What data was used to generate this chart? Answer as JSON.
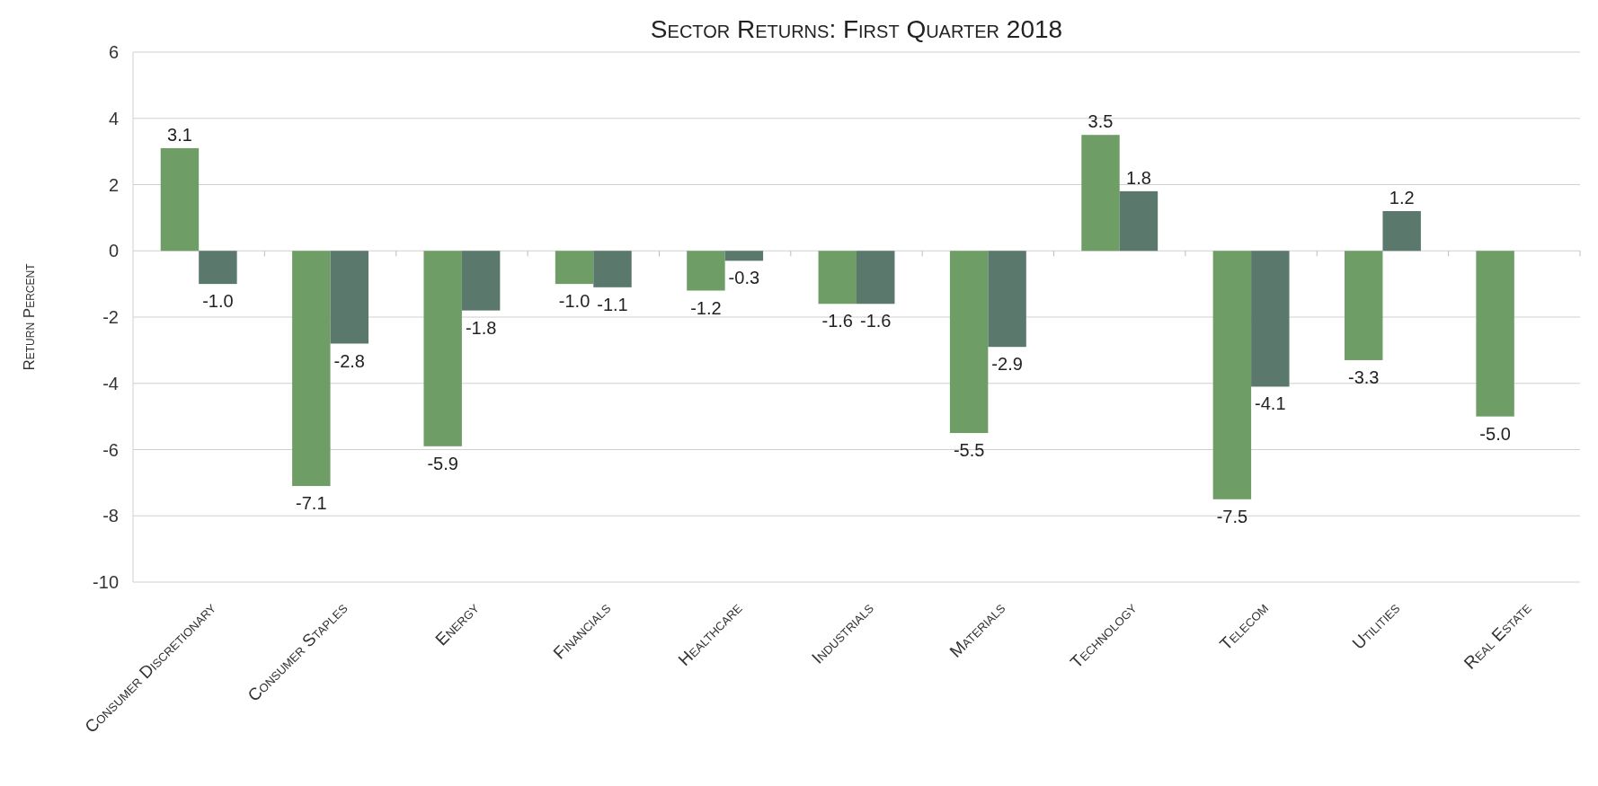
{
  "chart_data": {
    "type": "bar",
    "title": "Sector Returns: First Quarter 2018",
    "ylabel": "Return Percent",
    "categories": [
      "Consumer Discretionary",
      "Consumer Staples",
      "Energy",
      "Financials",
      "Healthcare",
      "Industrials",
      "Materials",
      "Technology",
      "Telecom",
      "Utilities",
      "Real Estate"
    ],
    "series": [
      {
        "color": "#6f9d66",
        "values": [
          3.1,
          -7.1,
          -5.9,
          -1.0,
          -1.2,
          -1.6,
          -5.5,
          3.5,
          -7.5,
          -3.3,
          -5.0
        ],
        "value_labels": [
          "3.1",
          "-7.1",
          "-5.9",
          "-1.0",
          "-1.2",
          "-1.6",
          "-5.5",
          "3.5",
          "-7.5",
          "-3.3",
          "-5.0"
        ]
      },
      {
        "color": "#5a786c",
        "values": [
          -1.0,
          -2.8,
          -1.8,
          -1.1,
          -0.3,
          -1.6,
          -2.9,
          1.8,
          -4.1,
          1.2,
          null
        ],
        "value_labels": [
          "-1.0",
          "-2.8",
          "-1.8",
          "-1.1",
          "-0.3",
          "-1.6",
          "-2.9",
          "1.8",
          "-4.1",
          "1.2",
          null
        ]
      }
    ],
    "ylim": [
      -10,
      6
    ],
    "yticks": [
      -10,
      -8,
      -6,
      -4,
      -2,
      0,
      2,
      4,
      6
    ],
    "grid": "y"
  }
}
